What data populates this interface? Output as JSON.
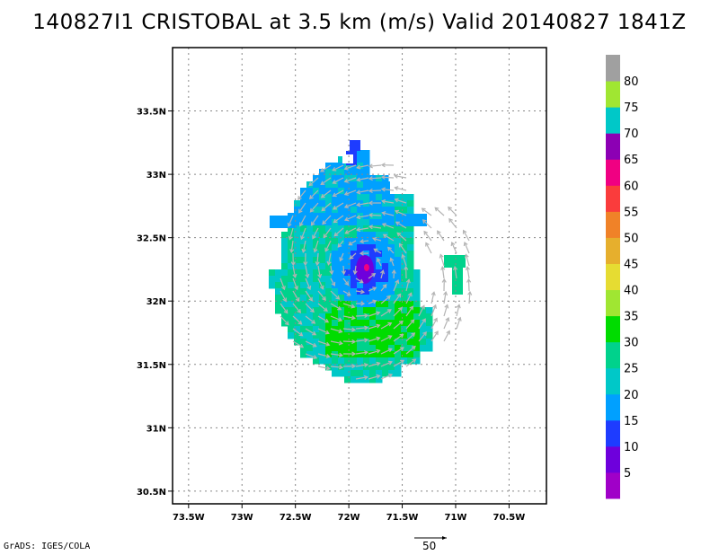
{
  "title": "140827I1 CRISTOBAL at 3.5 km (m/s) Valid 20140827 1841Z",
  "credit": "GrADS: IGES/COLA",
  "reference_vector_label": "50",
  "map": {
    "lon_range": [
      -73.65,
      -70.15
    ],
    "lat_range": [
      30.4,
      34.0
    ],
    "x_ticks": [
      {
        "value": -73.5,
        "label": "73.5W"
      },
      {
        "value": -73.0,
        "label": "73W"
      },
      {
        "value": -72.5,
        "label": "72.5W"
      },
      {
        "value": -72.0,
        "label": "72W"
      },
      {
        "value": -71.5,
        "label": "71.5W"
      },
      {
        "value": -71.0,
        "label": "71W"
      },
      {
        "value": -70.5,
        "label": "70.5W"
      }
    ],
    "y_ticks": [
      {
        "value": 33.5,
        "label": "33.5N"
      },
      {
        "value": 33.0,
        "label": "33N"
      },
      {
        "value": 32.5,
        "label": "32.5N"
      },
      {
        "value": 32.0,
        "label": "32N"
      },
      {
        "value": 31.5,
        "label": "31.5N"
      },
      {
        "value": 31.0,
        "label": "31N"
      },
      {
        "value": 30.5,
        "label": "30.5N"
      }
    ],
    "grid": true,
    "storm_center": {
      "lon": -71.85,
      "lat": 32.25
    }
  },
  "colorbar": {
    "labels": [
      "5",
      "10",
      "15",
      "20",
      "25",
      "30",
      "35",
      "40",
      "45",
      "50",
      "55",
      "60",
      "65",
      "70",
      "75",
      "80"
    ],
    "colors": [
      "#a000c8",
      "#6e00dc",
      "#1e3cff",
      "#00a0ff",
      "#00c8c8",
      "#00d28c",
      "#00dc00",
      "#a0e632",
      "#e6dc32",
      "#e6af2d",
      "#f08228",
      "#fa3c3c",
      "#f00082",
      "#8c00b4",
      "#00c8c8",
      "#a0e632",
      "#a0a0a0"
    ]
  }
}
